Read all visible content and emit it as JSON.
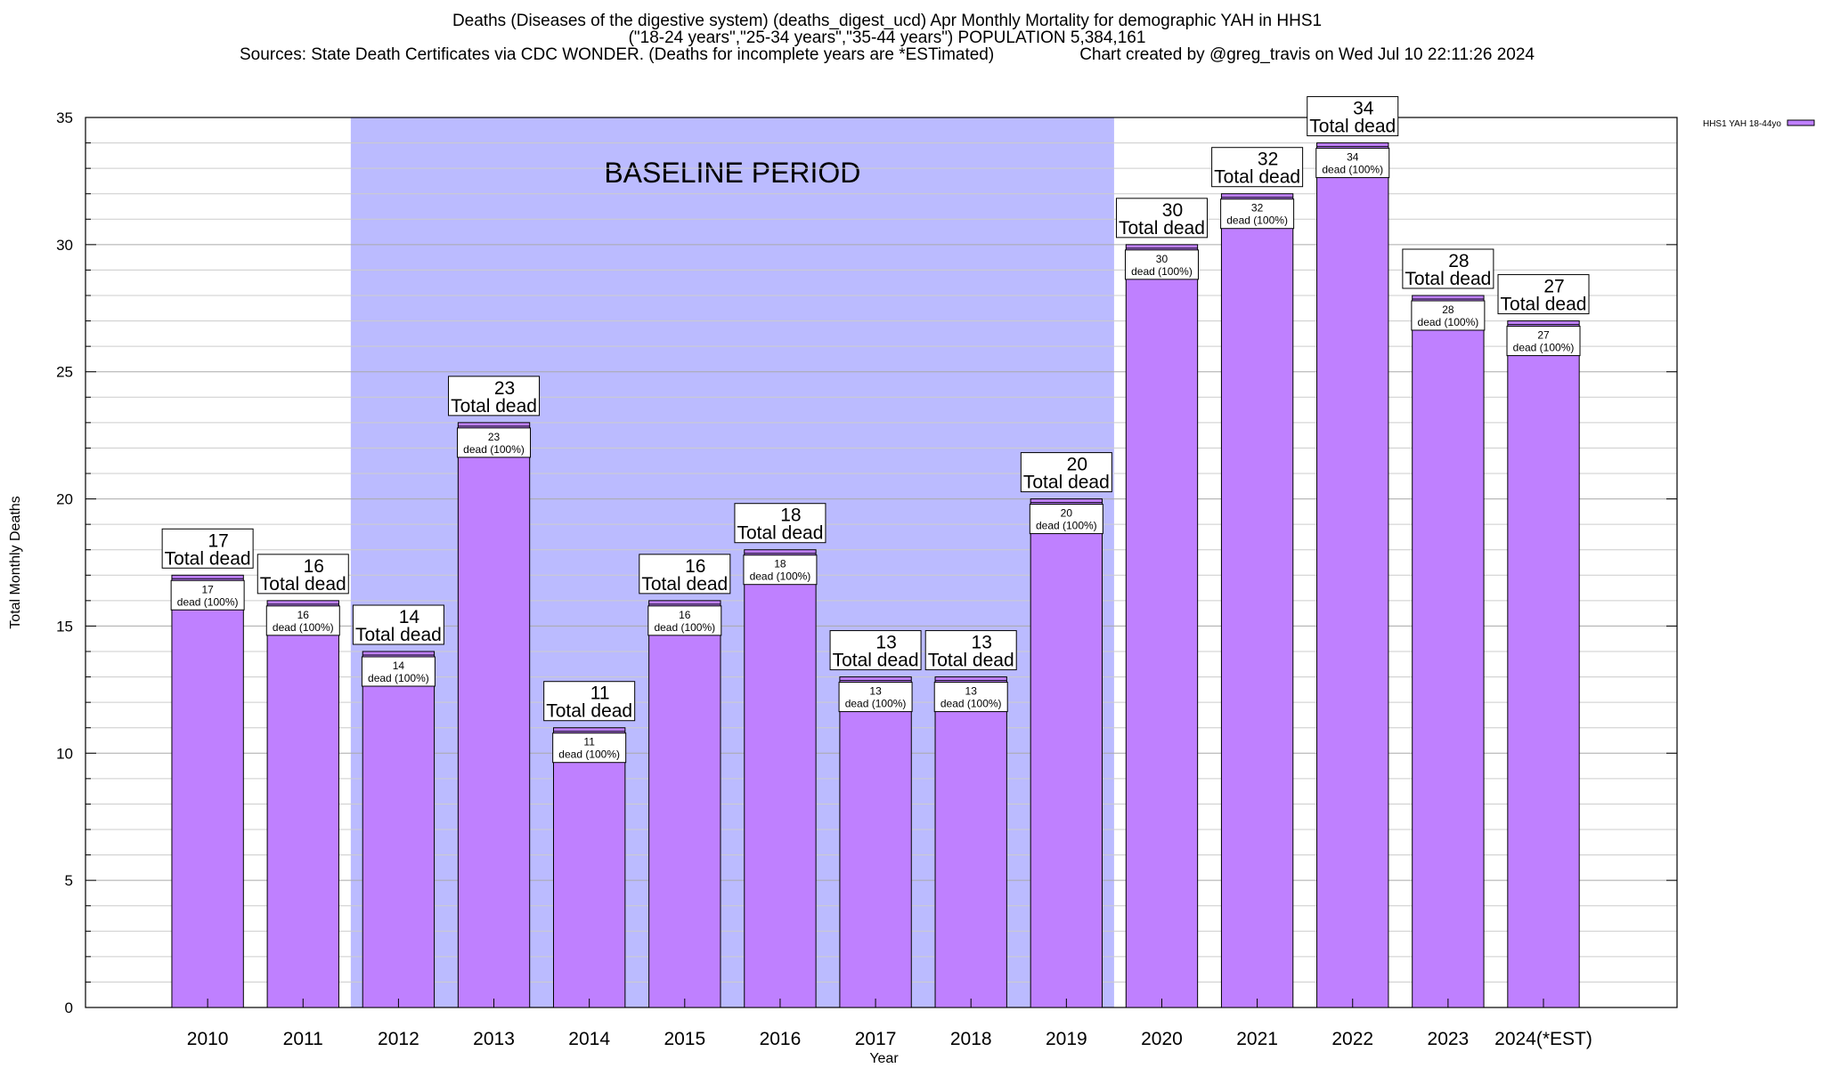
{
  "title": {
    "line1": "Deaths (Diseases of the digestive system) (deaths_digest_ucd) Apr Monthly Mortality for demographic YAH in HHS1",
    "line2": "(\"18-24 years\",\"25-34 years\",\"35-44 years\") POPULATION 5,384,161",
    "line3_sources": "Sources: State Death Certificates via CDC WONDER. (Deaths for incomplete years are *ESTimated)",
    "line3_credit": "Chart created by @greg_travis on Wed Jul 10 22:11:26 2024"
  },
  "chart_data": {
    "type": "bar",
    "xlabel": "Year",
    "ylabel": "Total Monthly Deaths",
    "ylim": [
      0,
      35
    ],
    "yticks": [
      0,
      5,
      10,
      15,
      20,
      25,
      30,
      35
    ],
    "grid": true,
    "legend_position": "top-right",
    "categories": [
      "2010",
      "2011",
      "2012",
      "2013",
      "2014",
      "2015",
      "2016",
      "2017",
      "2018",
      "2019",
      "2020",
      "2021",
      "2022",
      "2023",
      "2024(*EST)"
    ],
    "series": [
      {
        "name": "HHS1 YAH 18-44yo",
        "values": [
          17,
          16,
          14,
          23,
          11,
          16,
          18,
          13,
          13,
          20,
          30,
          32,
          34,
          28,
          27
        ],
        "color": "#bf80ff"
      }
    ],
    "top_labels": {
      "numbers": [
        "17",
        "16",
        "14",
        "23",
        "11",
        "16",
        "18",
        "13",
        "13",
        "20",
        "30",
        "32",
        "34",
        "28",
        "27"
      ],
      "suffix": "Total dead"
    },
    "inner_labels": {
      "numbers": [
        "17",
        "16",
        "14",
        "23",
        "11",
        "16",
        "18",
        "13",
        "13",
        "20",
        "30",
        "32",
        "34",
        "28",
        "27"
      ],
      "suffix": "dead (100%)"
    },
    "baseline": {
      "label": "BASELINE PERIOD",
      "from": "2012",
      "to": "2019",
      "color": "#bbbbff"
    }
  }
}
